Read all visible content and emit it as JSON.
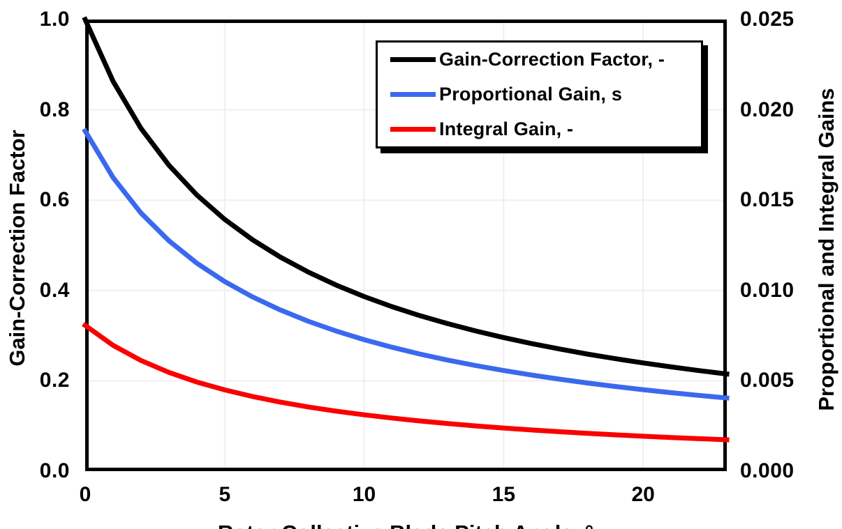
{
  "chart_data": {
    "type": "line",
    "title": "",
    "xlabel": "Rotor Collective Blade Pitch Angle, °",
    "ylabel_left": "Gain-Correction Factor",
    "ylabel_right": "Proportional and Integral Gains",
    "xlim": [
      0,
      23
    ],
    "ylim_left": [
      0,
      1.0
    ],
    "ylim_right": [
      0,
      0.025
    ],
    "x_ticks": [
      "0",
      "5",
      "10",
      "15",
      "20"
    ],
    "y_ticks_left": [
      "0.0",
      "0.2",
      "0.4",
      "0.6",
      "0.8",
      "1.0"
    ],
    "y_ticks_right": [
      "0.000",
      "0.005",
      "0.010",
      "0.015",
      "0.020",
      "0.025"
    ],
    "grid": true,
    "gridline_color": "#EFEFEF",
    "frame_color": "#000000",
    "legend_position": "top-center-inside",
    "x": [
      0,
      1,
      2,
      3,
      4,
      5,
      6,
      7,
      8,
      9,
      10,
      11,
      12,
      13,
      14,
      15,
      16,
      17,
      18,
      19,
      20,
      21,
      22,
      23
    ],
    "series": [
      {
        "name": "Gain-Correction Factor, -",
        "color": "#000000",
        "axis": "left",
        "values": [
          1.0,
          0.8631,
          0.7591,
          0.6775,
          0.6117,
          0.5576,
          0.5123,
          0.4738,
          0.4407,
          0.4119,
          0.3866,
          0.3642,
          0.3443,
          0.3265,
          0.3104,
          0.2959,
          0.2826,
          0.2705,
          0.2593,
          0.2491,
          0.2396,
          0.2308,
          0.2227,
          0.2151
        ]
      },
      {
        "name": "Proportional Gain, s",
        "color": "#3B69EE",
        "axis": "right",
        "values": [
          0.018827,
          0.016249,
          0.014292,
          0.012755,
          0.011517,
          0.010498,
          0.009645,
          0.00892,
          0.008296,
          0.007754,
          0.007278,
          0.006858,
          0.006483,
          0.006147,
          0.005844,
          0.00557,
          0.00532,
          0.005092,
          0.004882,
          0.004689,
          0.004511,
          0.004346,
          0.004192,
          0.004049
        ]
      },
      {
        "name": "Integral Gain, -",
        "color": "#FA0000",
        "axis": "right",
        "values": [
          0.008069,
          0.006964,
          0.006125,
          0.005466,
          0.004936,
          0.004499,
          0.004133,
          0.003823,
          0.003555,
          0.003323,
          0.003119,
          0.002939,
          0.002778,
          0.002634,
          0.002505,
          0.002387,
          0.00228,
          0.002182,
          0.002092,
          0.00201,
          0.001933,
          0.001862,
          0.001797,
          0.001735
        ]
      }
    ]
  }
}
